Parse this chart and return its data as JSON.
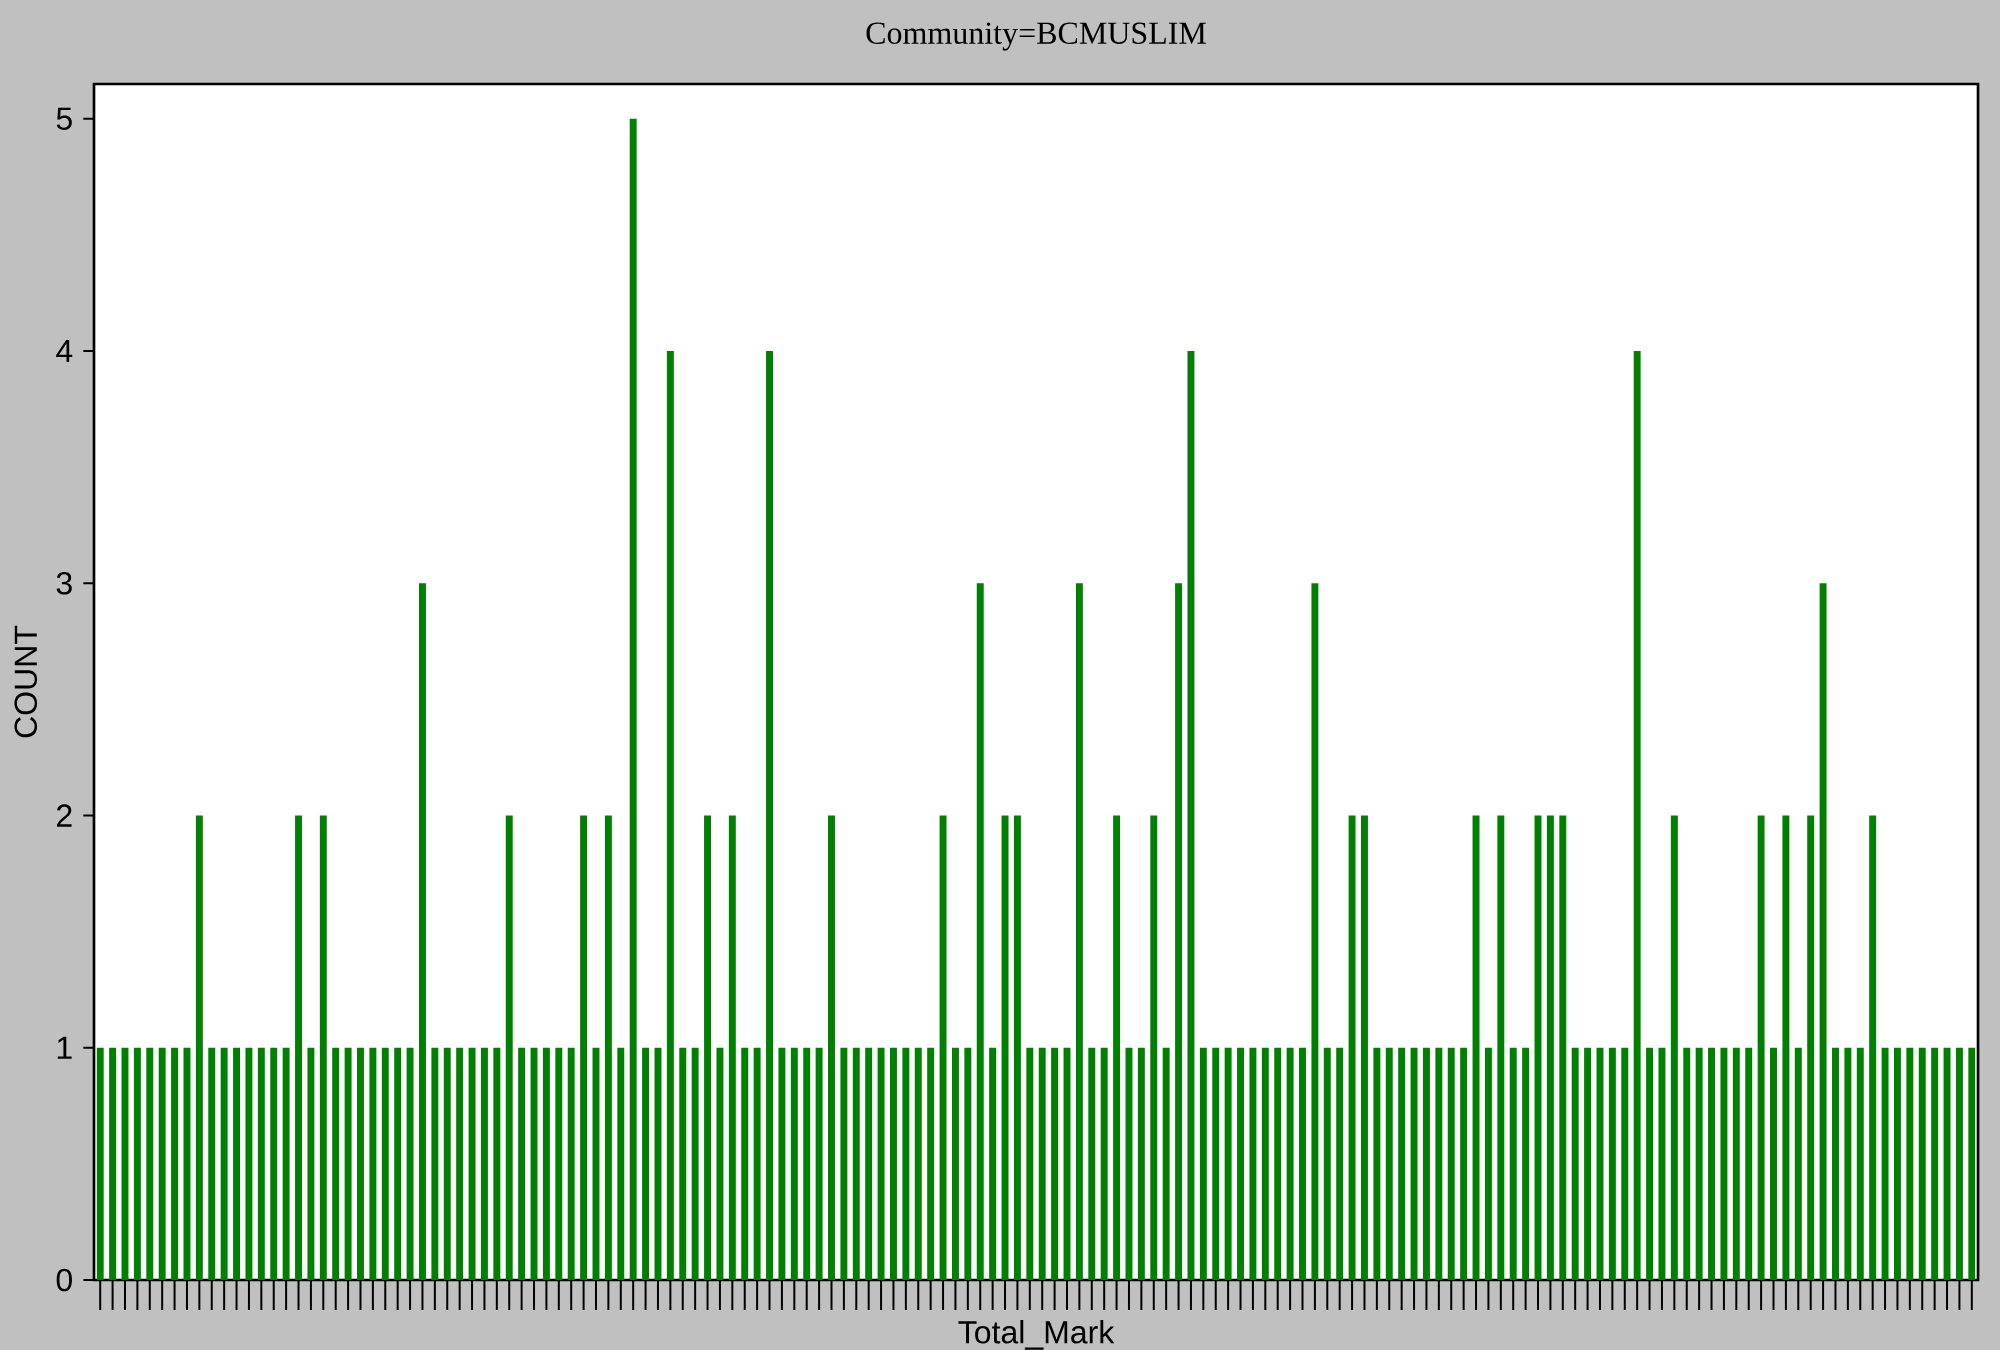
{
  "chart_data": {
    "type": "bar",
    "title": "Community=BCMUSLIM",
    "xlabel": "Total_Mark",
    "ylabel": "COUNT",
    "color": "#008000",
    "categories": [
      null,
      null,
      null,
      null,
      null,
      null,
      null,
      null,
      null,
      null,
      null,
      null,
      null,
      null,
      null,
      null,
      null,
      null,
      null,
      null,
      null,
      null,
      null,
      null,
      null,
      null,
      null,
      null,
      null,
      null,
      null,
      null,
      null,
      null,
      null,
      null,
      null,
      null,
      null,
      null,
      null,
      null,
      null,
      null,
      null,
      null,
      null,
      null,
      null,
      null,
      null,
      null,
      null,
      null,
      null,
      null,
      null,
      null,
      null,
      null,
      null,
      null,
      null,
      null,
      null,
      null,
      null,
      null,
      null,
      null,
      null,
      null,
      null,
      null,
      null,
      null,
      null,
      null,
      null,
      null,
      null,
      null,
      null,
      null,
      null,
      null,
      null,
      null,
      null,
      null,
      null,
      null,
      null,
      null,
      null,
      null,
      null,
      null,
      null,
      null,
      null,
      null,
      null,
      null,
      null,
      null,
      null,
      null,
      null,
      null,
      null,
      null,
      null,
      null,
      null,
      null,
      null,
      null,
      null,
      null,
      null,
      null,
      null,
      null,
      null,
      null,
      null,
      null,
      null,
      null,
      null,
      null,
      null,
      null,
      null,
      null,
      null,
      null,
      null,
      null,
      null,
      null,
      null,
      null,
      null,
      null,
      null,
      null,
      null,
      null,
      null,
      null
    ],
    "values": [
      1,
      1,
      1,
      1,
      1,
      1,
      1,
      1,
      2,
      1,
      1,
      1,
      1,
      1,
      1,
      1,
      2,
      1,
      2,
      1,
      1,
      1,
      1,
      1,
      1,
      1,
      3,
      1,
      1,
      1,
      1,
      1,
      1,
      2,
      1,
      1,
      1,
      1,
      1,
      2,
      1,
      2,
      1,
      5,
      1,
      1,
      4,
      1,
      1,
      2,
      1,
      2,
      1,
      1,
      4,
      1,
      1,
      1,
      1,
      2,
      1,
      1,
      1,
      1,
      1,
      1,
      1,
      1,
      2,
      1,
      1,
      3,
      1,
      2,
      2,
      1,
      1,
      1,
      1,
      3,
      1,
      1,
      2,
      1,
      1,
      2,
      1,
      3,
      4,
      1,
      1,
      1,
      1,
      1,
      1,
      1,
      1,
      1,
      3,
      1,
      1,
      2,
      2,
      1,
      1,
      1,
      1,
      1,
      1,
      1,
      1,
      2,
      1,
      2,
      1,
      1,
      2,
      2,
      2,
      1,
      1,
      1,
      1,
      1,
      4,
      1,
      1,
      2,
      1,
      1,
      1,
      1,
      1,
      1,
      2,
      1,
      2,
      1,
      2,
      3,
      1,
      1,
      1,
      2,
      1,
      1,
      1,
      1,
      1,
      1,
      1,
      1
    ],
    "ylim": [
      0,
      5.15
    ],
    "yticks": [
      0,
      1,
      2,
      3,
      4,
      5
    ]
  }
}
